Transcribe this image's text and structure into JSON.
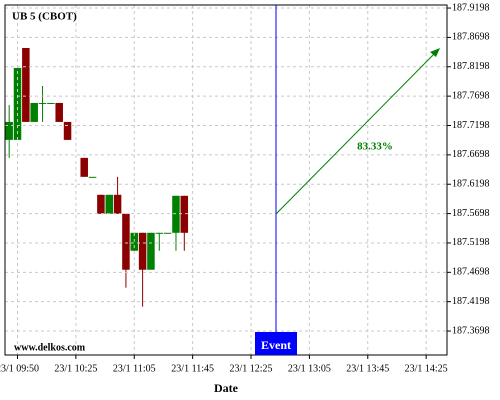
{
  "chart_data": {
    "type": "candlestick",
    "title": "UB 5 (CBOT)",
    "xlabel": "Date",
    "watermark": "www.delkos.com",
    "event_label": "Event",
    "annotation": "83.33%",
    "categories": [
      null,
      "23/1 09:50",
      null,
      null,
      null,
      null,
      null,
      null,
      "23/1 10:25",
      null,
      null,
      null,
      null,
      null,
      null,
      "23/1 11:05",
      null,
      null,
      null,
      null,
      null,
      null,
      "23/1 11:45",
      null,
      null,
      null,
      null,
      null,
      null,
      "23/1 12:25",
      null,
      null,
      null,
      null,
      null,
      null,
      "23/1 13:05",
      null,
      null,
      null,
      null,
      null,
      null,
      "23/1 13:45",
      null,
      null,
      null,
      null,
      null,
      null,
      "23/1 14:25",
      null,
      null
    ],
    "open": [
      187.6953,
      187.6953,
      187.8518,
      187.7259,
      187.7582,
      187.7565,
      187.7582,
      187.7259,
      null,
      187.6647,
      187.6324,
      187.6018,
      187.5695,
      187.6018,
      187.5695,
      187.5065,
      187.5371,
      187.4742,
      187.5371,
      187.5371,
      187.5371,
      187.6001,
      null,
      null,
      null,
      null,
      null,
      null,
      null,
      null,
      null,
      null,
      null,
      null,
      null,
      null,
      null,
      null,
      null,
      null,
      null,
      null,
      null,
      null,
      null,
      null,
      null,
      null,
      null,
      null,
      null,
      null,
      null
    ],
    "high": [
      187.7548,
      187.8178,
      187.8518,
      187.7582,
      187.7871,
      187.7582,
      187.7582,
      187.7259,
      null,
      187.6647,
      187.6324,
      187.6018,
      187.6018,
      187.6324,
      187.5695,
      187.5371,
      187.5371,
      187.5371,
      187.5371,
      187.5371,
      187.6001,
      187.6001,
      null,
      null,
      null,
      null,
      null,
      null,
      null,
      null,
      null,
      null,
      null,
      null,
      null,
      null,
      null,
      null,
      null,
      null,
      null,
      null,
      null,
      null,
      null,
      null,
      null,
      null,
      null,
      null,
      null,
      null,
      null
    ],
    "low": [
      187.6647,
      187.6953,
      187.7259,
      187.7259,
      187.7259,
      187.7565,
      187.7259,
      187.6953,
      null,
      187.6324,
      187.6324,
      187.5695,
      187.5695,
      187.5695,
      187.4436,
      187.5065,
      187.4113,
      187.4742,
      187.5065,
      187.5371,
      187.5065,
      187.5065,
      null,
      null,
      null,
      null,
      null,
      null,
      null,
      null,
      null,
      null,
      null,
      null,
      null,
      null,
      null,
      null,
      null,
      null,
      null,
      null,
      null,
      null,
      null,
      null,
      null,
      null,
      null,
      null,
      null,
      null,
      null
    ],
    "close": [
      187.7259,
      187.8178,
      187.7259,
      187.7582,
      187.7582,
      187.7582,
      187.7259,
      187.6953,
      null,
      187.6324,
      187.6324,
      187.5695,
      187.6018,
      187.5695,
      187.4742,
      187.5371,
      187.4742,
      187.5371,
      187.5371,
      187.5371,
      187.6001,
      187.5371,
      null,
      null,
      null,
      null,
      null,
      null,
      null,
      null,
      null,
      null,
      null,
      null,
      null,
      null,
      null,
      null,
      null,
      null,
      null,
      null,
      null,
      null,
      null,
      null,
      null,
      null,
      null,
      null,
      null,
      null,
      null
    ],
    "up_color": "#008000",
    "down_color": "#8b0000",
    "ylim": [
      187.329,
      187.925
    ],
    "yticks": [
      187.3698,
      187.4198,
      187.4698,
      187.5198,
      187.5698,
      187.6198,
      187.6698,
      187.7198,
      187.7698,
      187.8198,
      187.8698,
      187.9198
    ],
    "grid": true
  }
}
